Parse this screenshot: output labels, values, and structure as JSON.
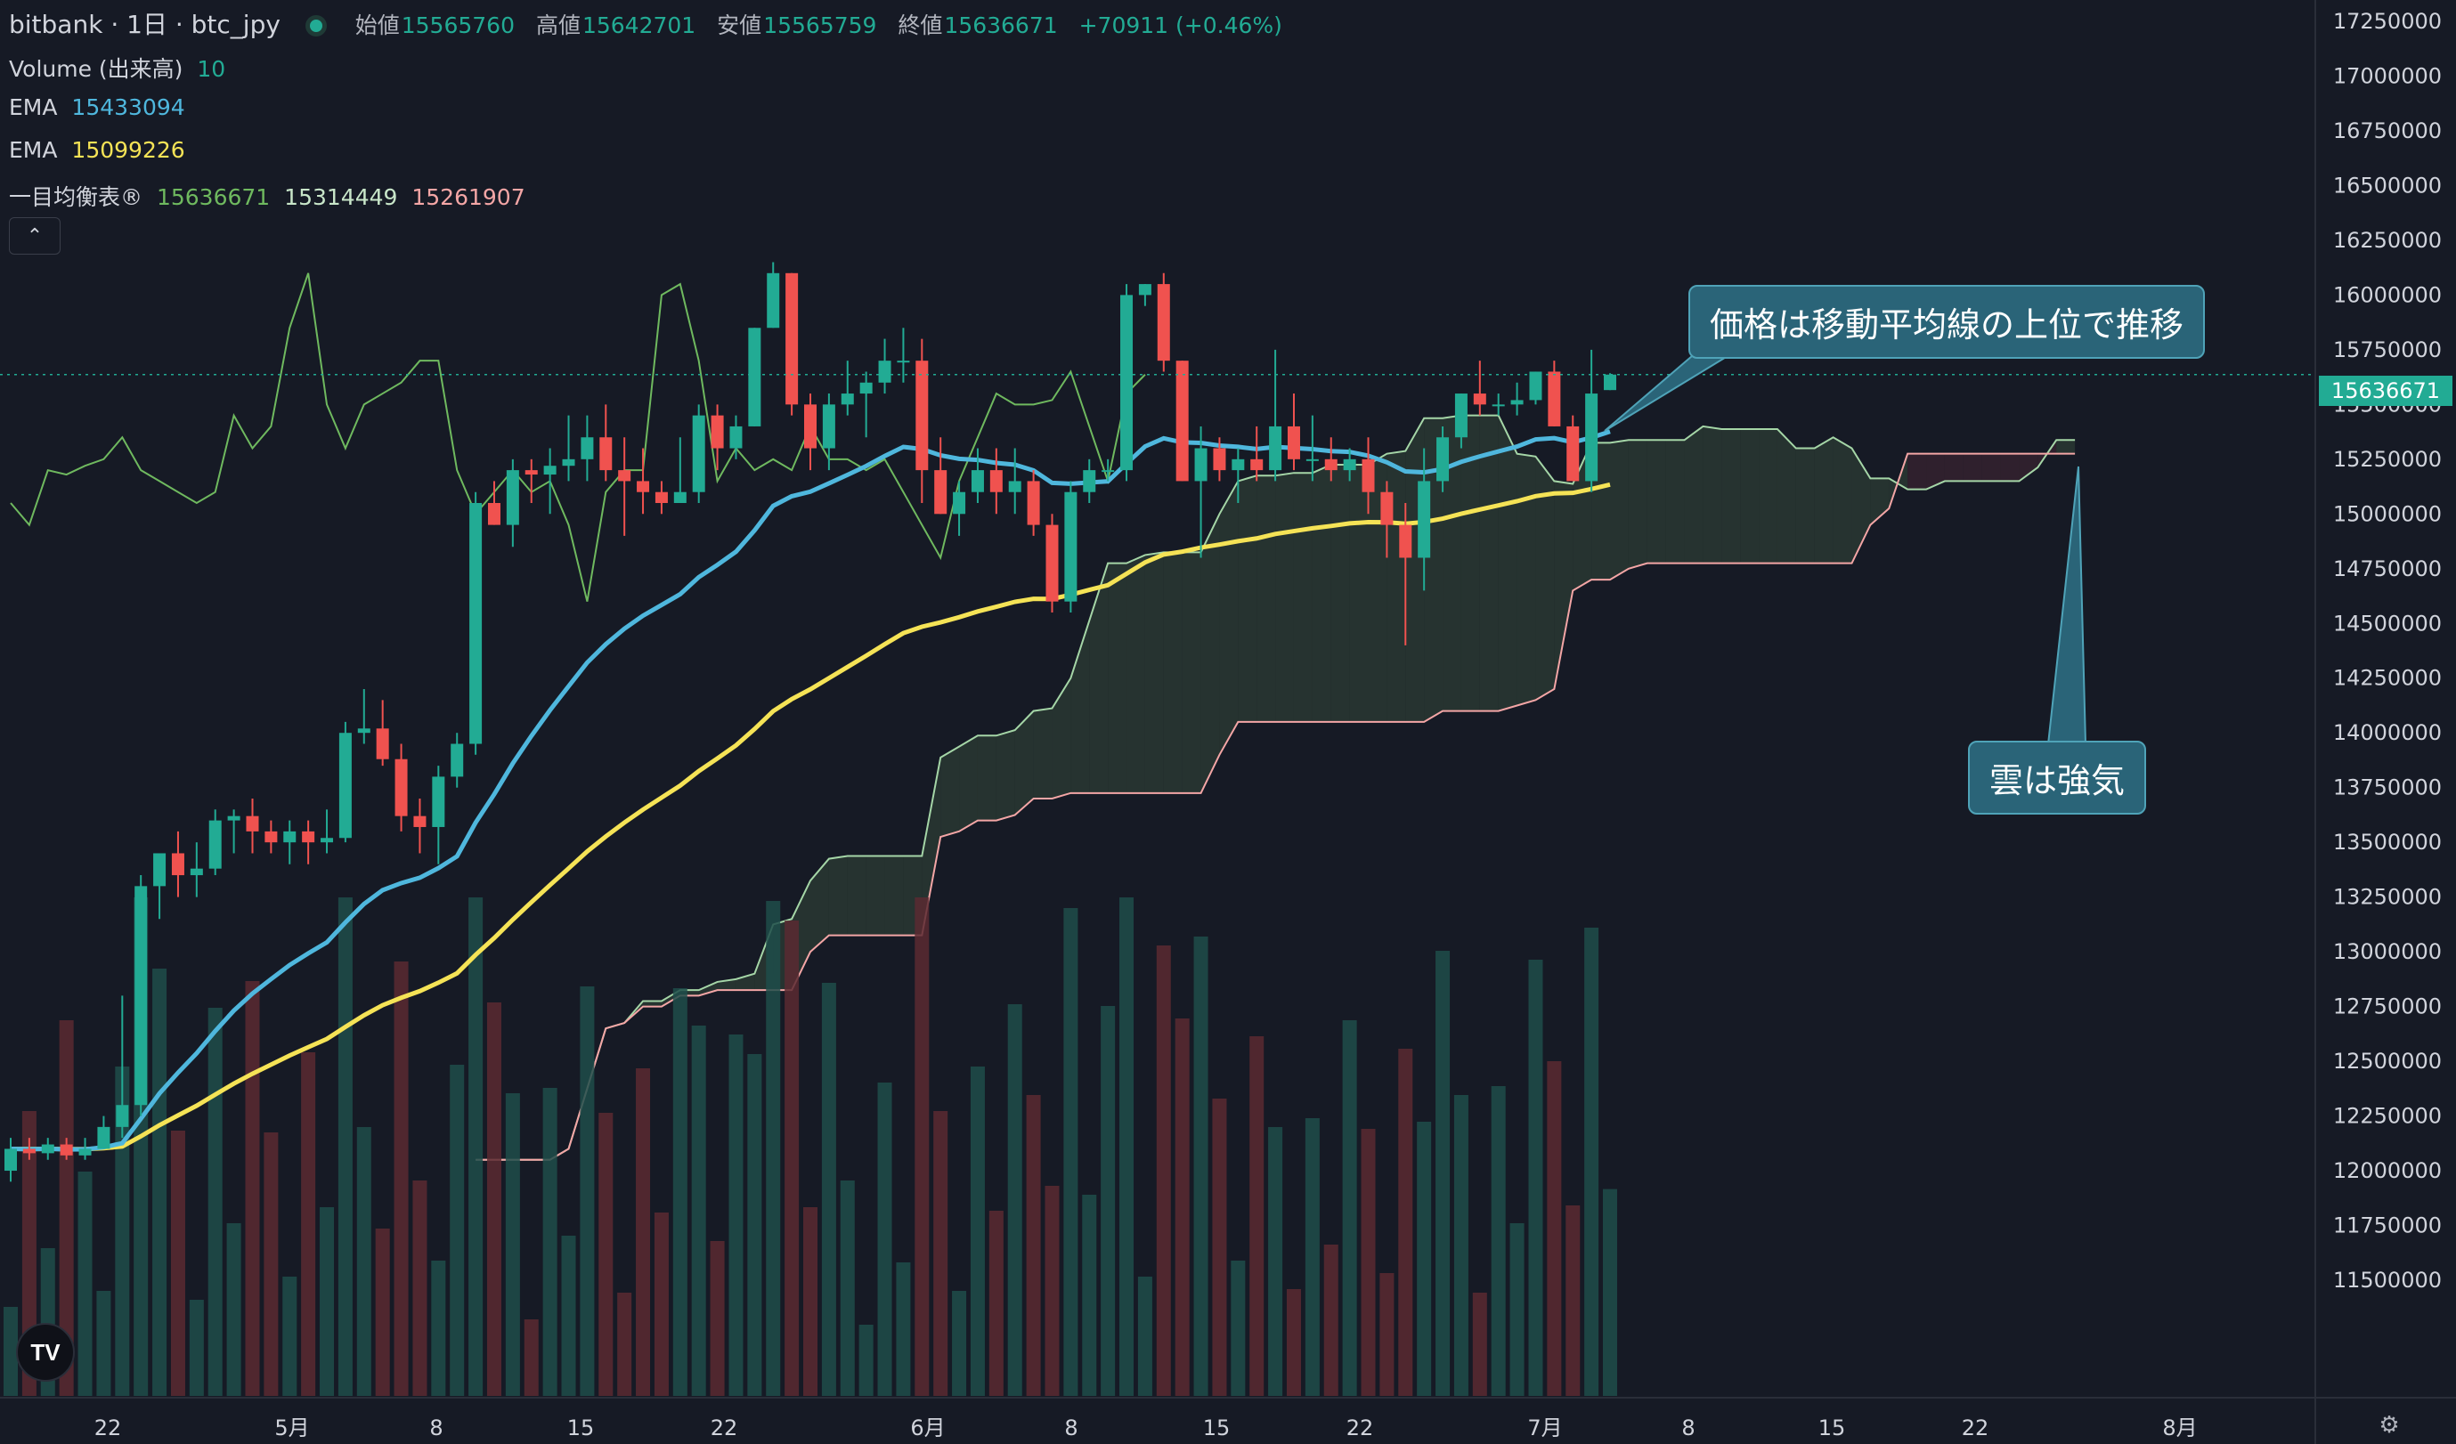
{
  "header": {
    "symbol": "bitbank · 1日 · btc_jpy",
    "ohlc": [
      {
        "label": "始値",
        "value": "15565760"
      },
      {
        "label": "高値",
        "value": "15642701"
      },
      {
        "label": "安値",
        "value": "15565759"
      },
      {
        "label": "終値",
        "value": "15636671"
      }
    ],
    "change": "+70911 (+0.46%)"
  },
  "indicators": {
    "volume": {
      "label": "Volume (出来高)",
      "value": "10"
    },
    "ema_fast": {
      "label": "EMA",
      "value": "15433094",
      "color": "#4fb7dd"
    },
    "ema_slow": {
      "label": "EMA",
      "value": "15099226",
      "color": "#f5e356"
    },
    "ichimoku": {
      "label": "一目均衡表®",
      "values": [
        "15636671",
        "15314449",
        "15261907"
      ],
      "colors": [
        "#6fb95f",
        "#c8e6c9",
        "#f4a6a6"
      ]
    }
  },
  "price_axis": {
    "labels": [
      "17250000",
      "17000000",
      "16750000",
      "16500000",
      "16250000",
      "16000000",
      "15750000",
      "15500000",
      "15250000",
      "15000000",
      "14750000",
      "14500000",
      "14250000",
      "14000000",
      "13750000",
      "13500000",
      "13250000",
      "13000000",
      "12750000",
      "12500000",
      "12250000",
      "12000000",
      "11750000",
      "11500000"
    ],
    "current_price": "15636671"
  },
  "time_axis": {
    "labels": [
      "22",
      "5月",
      "8",
      "15",
      "22",
      "6月",
      "8",
      "15",
      "22",
      "7月",
      "8",
      "15",
      "22",
      "8月"
    ]
  },
  "callouts": {
    "ma": "価格は移動平均線の上位で推移",
    "cloud": "雲は強気"
  },
  "logo_text": "TV",
  "colors": {
    "up": "#22ab94",
    "down": "#f0524f",
    "background": "#161a25",
    "cloud_bull": "#3a4d3a",
    "cloud_bear": "#4a2a33"
  },
  "chart_data": {
    "type": "candlestick",
    "ylim": [
      11250000,
      17400000
    ],
    "candles": [
      [
        12000000,
        12150000,
        11950000,
        12100000
      ],
      [
        12100000,
        12150000,
        12050000,
        12080000
      ],
      [
        12080000,
        12150000,
        12050000,
        12120000
      ],
      [
        12120000,
        12150000,
        12050000,
        12070000
      ],
      [
        12070000,
        12150000,
        12050000,
        12100000
      ],
      [
        12100000,
        12250000,
        12100000,
        12200000
      ],
      [
        12200000,
        12800000,
        12150000,
        12300000
      ],
      [
        12300000,
        13350000,
        12250000,
        13300000
      ],
      [
        13300000,
        13400000,
        13150000,
        13450000
      ],
      [
        13450000,
        13550000,
        13250000,
        13350000
      ],
      [
        13350000,
        13500000,
        13250000,
        13380000
      ],
      [
        13380000,
        13650000,
        13350000,
        13600000
      ],
      [
        13600000,
        13650000,
        13450000,
        13620000
      ],
      [
        13620000,
        13700000,
        13450000,
        13550000
      ],
      [
        13550000,
        13600000,
        13450000,
        13500000
      ],
      [
        13500000,
        13600000,
        13400000,
        13550000
      ],
      [
        13550000,
        13600000,
        13400000,
        13500000
      ],
      [
        13500000,
        13650000,
        13450000,
        13520000
      ],
      [
        13520000,
        14050000,
        13500000,
        14000000
      ],
      [
        14000000,
        14200000,
        13950000,
        14020000
      ],
      [
        14020000,
        14150000,
        13850000,
        13880000
      ],
      [
        13880000,
        13950000,
        13550000,
        13620000
      ],
      [
        13620000,
        13700000,
        13450000,
        13570000
      ],
      [
        13570000,
        13850000,
        13400000,
        13800000
      ],
      [
        13800000,
        14000000,
        13750000,
        13950000
      ],
      [
        13950000,
        15100000,
        13900000,
        15050000
      ],
      [
        15050000,
        15150000,
        14950000,
        14950000
      ],
      [
        14950000,
        15250000,
        14850000,
        15200000
      ],
      [
        15200000,
        15250000,
        15050000,
        15180000
      ],
      [
        15180000,
        15300000,
        15000000,
        15220000
      ],
      [
        15220000,
        15450000,
        15150000,
        15250000
      ],
      [
        15250000,
        15450000,
        15150000,
        15350000
      ],
      [
        15350000,
        15500000,
        15150000,
        15200000
      ],
      [
        15200000,
        15350000,
        14900000,
        15150000
      ],
      [
        15150000,
        15300000,
        15000000,
        15100000
      ],
      [
        15100000,
        15150000,
        15000000,
        15050000
      ],
      [
        15050000,
        15350000,
        15050000,
        15100000
      ],
      [
        15100000,
        15500000,
        15050000,
        15450000
      ],
      [
        15450000,
        15500000,
        15200000,
        15300000
      ],
      [
        15300000,
        15450000,
        15250000,
        15400000
      ],
      [
        15400000,
        15850000,
        15400000,
        15850000
      ],
      [
        15850000,
        16150000,
        15850000,
        16100000
      ],
      [
        16100000,
        16100000,
        15450000,
        15500000
      ],
      [
        15500000,
        15550000,
        15200000,
        15300000
      ],
      [
        15300000,
        15550000,
        15200000,
        15500000
      ],
      [
        15500000,
        15700000,
        15450000,
        15550000
      ],
      [
        15550000,
        15650000,
        15350000,
        15600000
      ],
      [
        15600000,
        15800000,
        15550000,
        15700000
      ],
      [
        15700000,
        15850000,
        15600000,
        15700000
      ],
      [
        15700000,
        15800000,
        15050000,
        15200000
      ],
      [
        15200000,
        15350000,
        15000000,
        15000000
      ],
      [
        15000000,
        15150000,
        14900000,
        15100000
      ],
      [
        15100000,
        15300000,
        15050000,
        15200000
      ],
      [
        15200000,
        15300000,
        15000000,
        15100000
      ],
      [
        15100000,
        15300000,
        15000000,
        15150000
      ],
      [
        15150000,
        15200000,
        14900000,
        14950000
      ],
      [
        14950000,
        15000000,
        14550000,
        14600000
      ],
      [
        14600000,
        15150000,
        14550000,
        15100000
      ],
      [
        15100000,
        15250000,
        15050000,
        15200000
      ],
      [
        15200000,
        15250000,
        15150000,
        15200000
      ],
      [
        15200000,
        16050000,
        15150000,
        16000000
      ],
      [
        16000000,
        16050000,
        15950000,
        16050000
      ],
      [
        16050000,
        16100000,
        15650000,
        15700000
      ],
      [
        15700000,
        15700000,
        15150000,
        15150000
      ],
      [
        15150000,
        15400000,
        14800000,
        15300000
      ],
      [
        15300000,
        15350000,
        15150000,
        15200000
      ],
      [
        15200000,
        15300000,
        15050000,
        15250000
      ],
      [
        15250000,
        15400000,
        15150000,
        15200000
      ],
      [
        15200000,
        15750000,
        15150000,
        15400000
      ],
      [
        15400000,
        15550000,
        15200000,
        15250000
      ],
      [
        15250000,
        15450000,
        15150000,
        15250000
      ],
      [
        15250000,
        15350000,
        15150000,
        15200000
      ],
      [
        15200000,
        15300000,
        15150000,
        15250000
      ],
      [
        15250000,
        15350000,
        15000000,
        15100000
      ],
      [
        15100000,
        15150000,
        14800000,
        14950000
      ],
      [
        14950000,
        15050000,
        14400000,
        14800000
      ],
      [
        14800000,
        15300000,
        14650000,
        15150000
      ],
      [
        15150000,
        15400000,
        15100000,
        15350000
      ],
      [
        15350000,
        15550000,
        15300000,
        15550000
      ],
      [
        15550000,
        15700000,
        15450000,
        15500000
      ],
      [
        15500000,
        15550000,
        15450000,
        15500000
      ],
      [
        15500000,
        15600000,
        15450000,
        15520000
      ],
      [
        15520000,
        15650000,
        15500000,
        15650000
      ],
      [
        15650000,
        15700000,
        15400000,
        15400000
      ],
      [
        15400000,
        15450000,
        15150000,
        15150000
      ],
      [
        15150000,
        15750000,
        15100000,
        15550000
      ],
      [
        15565760,
        15642701,
        15565759,
        15636671
      ]
    ],
    "volume_scale_max": 1600
  }
}
